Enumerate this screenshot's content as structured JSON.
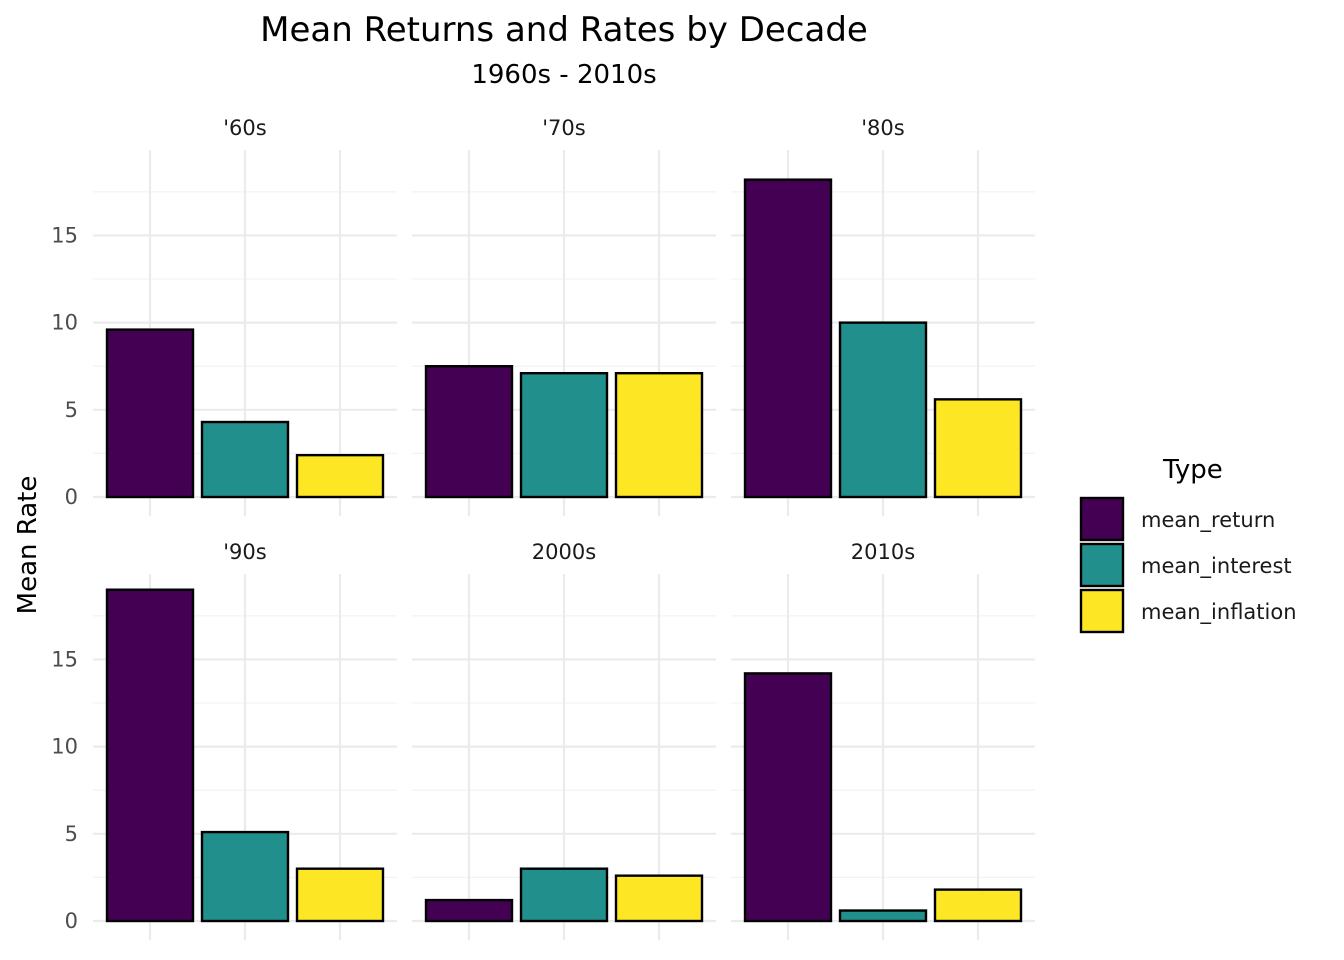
{
  "chart_data": {
    "type": "bar",
    "title": "Mean Returns and Rates by Decade",
    "subtitle": "1960s - 2010s",
    "ylabel": "Mean Rate",
    "xlabel": "",
    "ylim": [
      0,
      19.9
    ],
    "yticks": [
      0,
      5,
      10,
      15
    ],
    "grid": true,
    "legend": {
      "title": "Type",
      "placement": "right",
      "entries": [
        {
          "name": "mean_return",
          "color": "#440154"
        },
        {
          "name": "mean_interest",
          "color": "#21908C"
        },
        {
          "name": "mean_inflation",
          "color": "#FDE725"
        }
      ]
    },
    "facets": [
      {
        "label": "'60s",
        "values": {
          "mean_return": 9.6,
          "mean_interest": 4.3,
          "mean_inflation": 2.4
        }
      },
      {
        "label": "'70s",
        "values": {
          "mean_return": 7.5,
          "mean_interest": 7.1,
          "mean_inflation": 7.1
        }
      },
      {
        "label": "'80s",
        "values": {
          "mean_return": 18.2,
          "mean_interest": 10.0,
          "mean_inflation": 5.6
        }
      },
      {
        "label": "'90s",
        "values": {
          "mean_return": 19.0,
          "mean_interest": 5.1,
          "mean_inflation": 3.0
        }
      },
      {
        "label": "2000s",
        "values": {
          "mean_return": 1.2,
          "mean_interest": 3.0,
          "mean_inflation": 2.6
        }
      },
      {
        "label": "2010s",
        "values": {
          "mean_return": 14.2,
          "mean_interest": 0.6,
          "mean_inflation": 1.8
        }
      }
    ]
  }
}
